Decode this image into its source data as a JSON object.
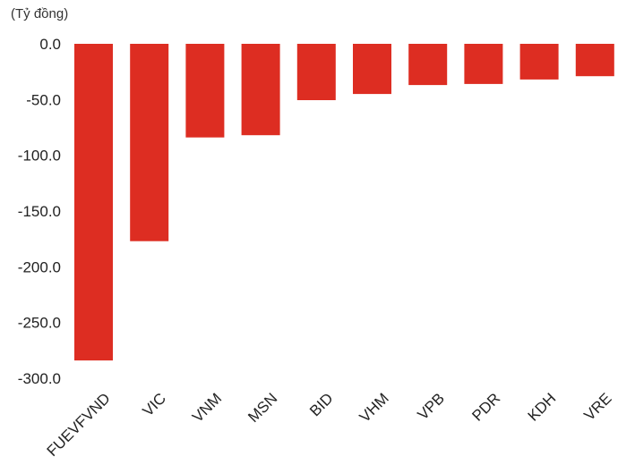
{
  "chart_data": {
    "type": "bar",
    "unit_label": "(Tỷ đồng)",
    "categories": [
      "FUEVFVND",
      "VIC",
      "VNM",
      "MSN",
      "BID",
      "VHM",
      "VPB",
      "PDR",
      "KDH",
      "VRE"
    ],
    "values": [
      -284,
      -177,
      -84,
      -82,
      -50.5,
      -45,
      -37,
      -36,
      -32,
      -29
    ],
    "y_ticks": [
      "0.0",
      "-50.0",
      "-100.0",
      "-150.0",
      "-200.0",
      "-250.0",
      "-300.0"
    ],
    "ylim": [
      -300,
      0
    ],
    "grid": false,
    "bar_color": "#dd2d22"
  }
}
